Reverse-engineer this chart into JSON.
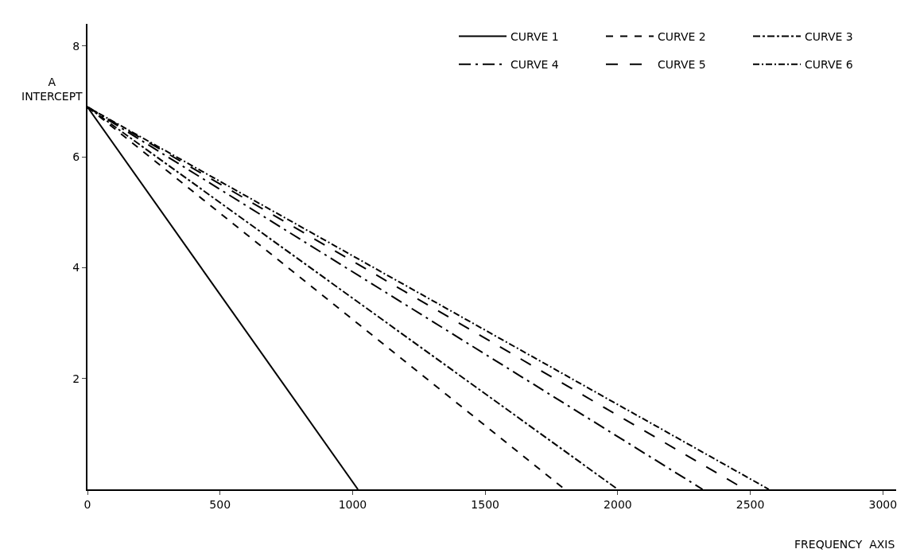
{
  "chart_data": {
    "type": "line",
    "xlabel": "FREQUENCY  AXIS",
    "ylabel": "A\nINTERCEPT",
    "xlim": [
      0,
      3050
    ],
    "xticks": [
      0,
      500,
      1000,
      1500,
      2000,
      2500,
      3000
    ],
    "ylim": [
      0,
      8.4
    ],
    "yticks": [
      2,
      4,
      6,
      8
    ],
    "legend": "top right",
    "marker": "none",
    "series": [
      {
        "name": "CURVE 1",
        "color": "#000000",
        "line_style": "solid",
        "x": [
          0,
          1020
        ],
        "values": [
          6.9,
          0
        ]
      },
      {
        "name": "CURVE 2",
        "color": "#000000",
        "line_style": "dashed",
        "x": [
          0,
          1800
        ],
        "values": [
          6.9,
          0
        ]
      },
      {
        "name": "CURVE 3",
        "color": "#000000",
        "line_style": "dotted",
        "x": [
          0,
          2000
        ],
        "values": [
          6.9,
          0
        ]
      },
      {
        "name": "CURVE 4",
        "color": "#000000",
        "line_style": "dashed",
        "x": [
          0,
          2320
        ],
        "values": [
          6.9,
          0
        ]
      },
      {
        "name": "CURVE 5",
        "color": "#000000",
        "line_style": "dashed",
        "x": [
          0,
          2480
        ],
        "values": [
          6.9,
          0
        ]
      },
      {
        "name": "CURVE 6",
        "color": "#000000",
        "line_style": "dashed",
        "x": [
          0,
          2570
        ],
        "values": [
          6.9,
          0
        ]
      }
    ]
  }
}
